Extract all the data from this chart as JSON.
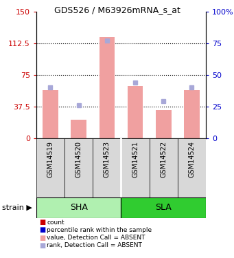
{
  "title": "GDS526 / M63926mRNA_s_at",
  "samples": [
    "GSM14519",
    "GSM14520",
    "GSM14523",
    "GSM14521",
    "GSM14522",
    "GSM14524"
  ],
  "group_labels": [
    "SHA",
    "SLA"
  ],
  "sha_color": "#b0f0b0",
  "sla_color": "#30cc30",
  "bar_values": [
    57,
    22,
    120,
    62,
    33,
    57
  ],
  "rank_values": [
    40,
    26,
    77,
    44,
    29,
    40
  ],
  "ylim_left": [
    0,
    150
  ],
  "ylim_right": [
    0,
    100
  ],
  "yticks_left": [
    0,
    37.5,
    75,
    112.5,
    150
  ],
  "yticks_right": [
    0,
    25,
    50,
    75,
    100
  ],
  "bar_color": "#f0a0a0",
  "rank_color": "#a8a8d8",
  "dotted_lines": [
    37.5,
    75,
    112.5
  ],
  "left_axis_color": "#cc0000",
  "right_axis_color": "#0000cc",
  "legend_labels": [
    "count",
    "percentile rank within the sample",
    "value, Detection Call = ABSENT",
    "rank, Detection Call = ABSENT"
  ],
  "legend_colors": [
    "#cc0000",
    "#0000cc",
    "#f0a0a0",
    "#a8a8d8"
  ],
  "strain_label": "strain"
}
